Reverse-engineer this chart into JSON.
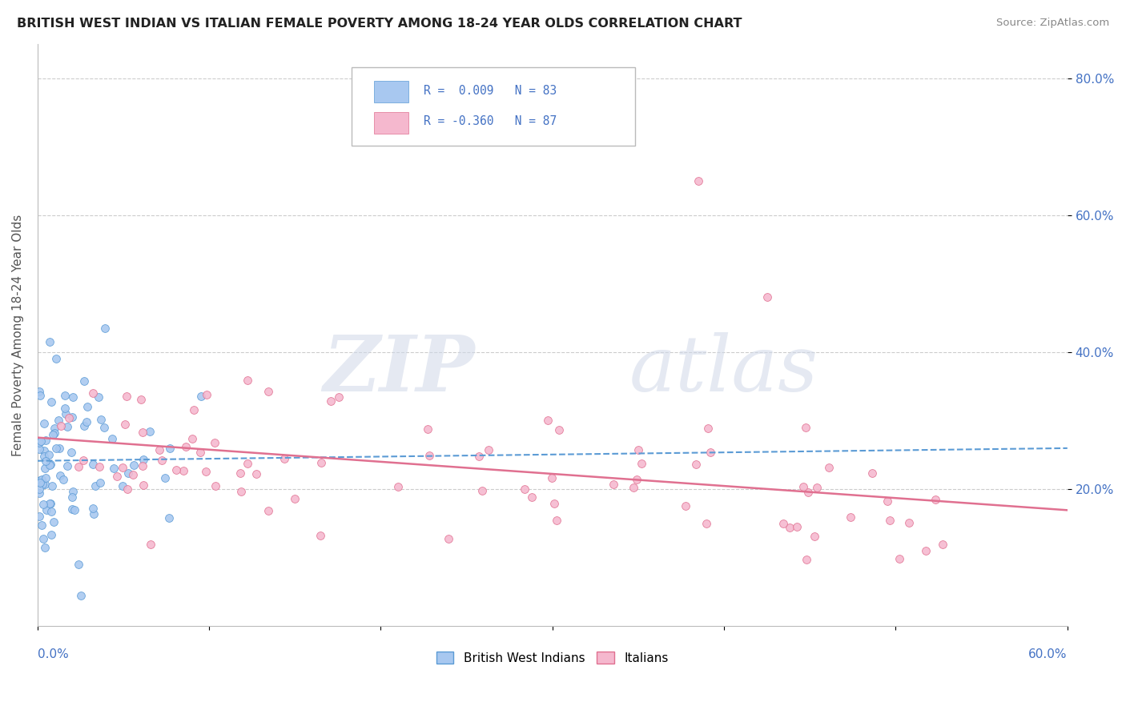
{
  "title": "BRITISH WEST INDIAN VS ITALIAN FEMALE POVERTY AMONG 18-24 YEAR OLDS CORRELATION CHART",
  "source": "Source: ZipAtlas.com",
  "xlim": [
    0.0,
    0.6
  ],
  "ylim": [
    0.0,
    0.85
  ],
  "watermark_zip": "ZIP",
  "watermark_atlas": "atlas",
  "blue_R": "0.009",
  "blue_N": 83,
  "pink_R": "-0.360",
  "pink_N": 87,
  "blue_color": "#a8c8f0",
  "pink_color": "#f5b8ce",
  "blue_edge_color": "#5b9bd5",
  "pink_edge_color": "#e07090",
  "blue_line_color": "#5b9bd5",
  "pink_line_color": "#e07090",
  "legend_blue_label": "British West Indians",
  "legend_pink_label": "Italians",
  "blue_seed": 42,
  "pink_seed": 99,
  "background_color": "#ffffff",
  "grid_color": "#cccccc"
}
